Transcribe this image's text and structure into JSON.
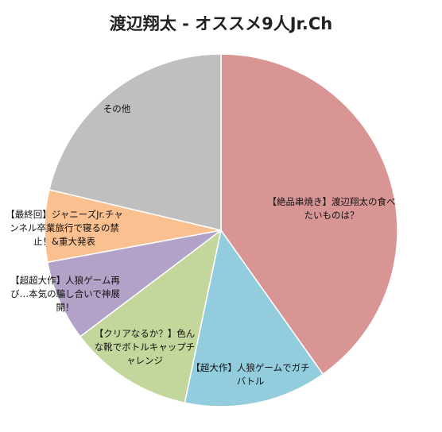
{
  "chart_data": {
    "type": "pie",
    "title": "渡辺翔太 - オススメ9人Jr.Ch",
    "slices": [
      {
        "label": "【絶品串焼き】渡辺翔太の食べたいものは？",
        "value": 40.2,
        "color": "#d99594"
      },
      {
        "label": "【超大作】人狼ゲームでガチバトル",
        "value": 13.1,
        "color": "#93cddd"
      },
      {
        "label": "【クリアなるか？】色んな靴でボトルキャップチャレンジ",
        "value": 11.4,
        "color": "#c3d69b"
      },
      {
        "label": "【超超大作】人狼ゲーム再び…本気の騙し合いで神展開！",
        "value": 7.4,
        "color": "#b2a2c7"
      },
      {
        "label": "【最終回】ジャニーズJr.チャンネル卒業旅行で寝るの禁止！&重大発表",
        "value": 6.6,
        "color": "#fac090"
      },
      {
        "label": "その他",
        "value": 21.3,
        "color": "#bfbfbf"
      }
    ]
  }
}
